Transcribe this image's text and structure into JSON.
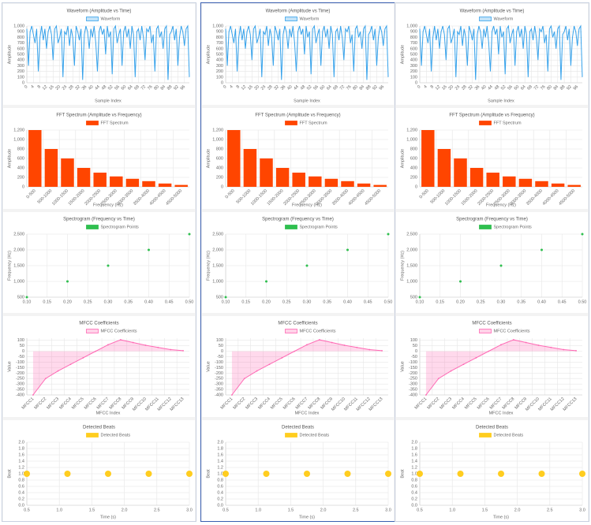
{
  "chart_data": [
    {
      "type": "line",
      "title": "Waveform (Amplitude vs Time)",
      "legend": "Waveform",
      "color": "#36a2eb",
      "xlabel": "Sample Index",
      "ylabel": "Amplitude",
      "x": [
        0,
        1,
        2,
        3,
        4,
        5,
        6,
        7,
        8,
        9,
        10,
        11,
        12,
        13,
        14,
        15,
        16,
        17,
        18,
        19,
        20,
        21,
        22,
        23,
        24,
        25,
        26,
        27,
        28,
        29,
        30,
        31,
        32,
        33,
        34,
        35,
        36,
        37,
        38,
        39,
        40,
        41,
        42,
        43,
        44,
        45,
        46,
        47,
        48,
        49,
        50,
        51,
        52,
        53,
        54,
        55,
        56,
        57,
        58,
        59,
        60,
        61,
        62,
        63,
        64,
        65,
        66,
        67,
        68,
        69,
        70,
        71,
        72,
        73,
        74,
        75,
        76,
        77,
        78,
        79,
        80,
        81,
        82,
        83,
        84,
        85,
        86,
        87,
        88,
        89,
        90,
        91,
        92,
        93,
        94,
        95,
        96,
        97,
        98,
        99
      ],
      "values": [
        950,
        300,
        900,
        1000,
        850,
        700,
        950,
        200,
        800,
        1000,
        750,
        950,
        600,
        900,
        1000,
        850,
        400,
        950,
        1000,
        700,
        800,
        950,
        100,
        900,
        850,
        1000,
        650,
        950,
        800,
        300,
        1000,
        900,
        750,
        950,
        50,
        850,
        1000,
        900,
        600,
        950,
        800,
        1000,
        700,
        200,
        900,
        1000,
        850,
        950,
        500,
        1000,
        800,
        900,
        150,
        950,
        1000,
        700,
        850,
        950,
        300,
        900,
        1000,
        800,
        950,
        600,
        1000,
        850,
        100,
        900,
        950,
        750,
        1000,
        800,
        400,
        950,
        900,
        1000,
        700,
        850,
        200,
        950,
        1000,
        800,
        900,
        600,
        950,
        1000,
        50,
        850,
        900,
        1000,
        750,
        950,
        300,
        800,
        1000,
        900,
        650,
        950,
        1000,
        100
      ],
      "xlim": [
        0,
        99
      ],
      "xticks": [
        0,
        4,
        8,
        12,
        16,
        20,
        24,
        28,
        32,
        36,
        40,
        44,
        48,
        52,
        56,
        60,
        64,
        68,
        72,
        76,
        80,
        84,
        88,
        92,
        96
      ],
      "ylim": [
        0,
        1000
      ],
      "yticks": [
        0,
        100,
        200,
        300,
        400,
        500,
        600,
        700,
        800,
        900,
        {
          "value": 1000,
          "label": "1,000"
        }
      ],
      "grid": true
    },
    {
      "type": "bar",
      "title": "FFT Spectrum (Amplitude vs Frequency)",
      "legend": "FFT Spectrum",
      "color": "#ff4500",
      "xlabel": "Frequency (Hz)",
      "ylabel": "Amplitude",
      "categories": [
        "0-500",
        "500-1000",
        "1000-1500",
        "1500-2000",
        "2000-2500",
        "2500-3000",
        "3000-3500",
        "3500-4000",
        "4000-4500",
        "4500-5000"
      ],
      "values": [
        1200,
        800,
        600,
        400,
        300,
        220,
        170,
        120,
        70,
        40
      ],
      "ylim": [
        0,
        1200
      ],
      "yticks": [
        0,
        200,
        400,
        600,
        800,
        {
          "value": 1000,
          "label": "1,000"
        },
        {
          "value": 1200,
          "label": "1,200"
        }
      ],
      "grid": true
    },
    {
      "type": "scatter",
      "title": "Spectrogram (Frequency vs Time)",
      "legend": "Spectrogram Points",
      "color": "#2fbf4f",
      "ylabel": "Frequency (Hz)",
      "marker_size": 1.5,
      "x": [
        0.1,
        0.2,
        0.3,
        0.4,
        0.5
      ],
      "values": [
        500,
        1000,
        1500,
        2000,
        2500
      ],
      "xlim": [
        0.1,
        0.5
      ],
      "xticks": [
        {
          "value": 0.1,
          "label": "0.10"
        },
        {
          "value": 0.15,
          "label": "0.15"
        },
        {
          "value": 0.2,
          "label": "0.20"
        },
        {
          "value": 0.25,
          "label": "0.25"
        },
        {
          "value": 0.3,
          "label": "0.30"
        },
        {
          "value": 0.35,
          "label": "0.35"
        },
        {
          "value": 0.4,
          "label": "0.40"
        },
        {
          "value": 0.45,
          "label": "0.45"
        },
        {
          "value": 0.5,
          "label": "0.50"
        }
      ],
      "ylim": [
        500,
        2500
      ],
      "yticks": [
        500,
        {
          "value": 1000,
          "label": "1,000"
        },
        {
          "value": 1500,
          "label": "1,500"
        },
        {
          "value": 2000,
          "label": "2,000"
        },
        {
          "value": 2500,
          "label": "2,500"
        }
      ],
      "grid": true
    },
    {
      "type": "line",
      "title": "MFCC Coefficients",
      "legend": "MFCC Coefficients",
      "color": "#ff69b4",
      "fill": true,
      "xlabel": "MFCC Index",
      "ylabel": "Value",
      "categories": [
        "MFCC1",
        "MFCC2",
        "MFCC3",
        "MFCC4",
        "MFCC5",
        "MFCC6",
        "MFCC7",
        "MFCC8",
        "MFCC9",
        "MFCC10",
        "MFCC11",
        "MFCC12",
        "MFCC13"
      ],
      "values": [
        -400,
        -250,
        -180,
        -120,
        -60,
        0,
        60,
        105,
        80,
        55,
        35,
        15,
        5
      ],
      "ylim": [
        -400,
        120
      ],
      "yticks": [
        -400,
        -350,
        -300,
        -250,
        -200,
        -150,
        -100,
        -50,
        0,
        50,
        100
      ],
      "grid": true
    },
    {
      "type": "scatter",
      "title": "Detected Beats",
      "legend": "Detected Beats",
      "color": "#ffcd1f",
      "xlabel": "Time (s)",
      "ylabel": "Beat",
      "marker_size": 4,
      "x": [
        0.5,
        1.125,
        1.75,
        2.375,
        3.0
      ],
      "values": [
        1,
        1,
        1,
        1,
        1
      ],
      "xlim": [
        0.5,
        3.0
      ],
      "xticks": [
        0.5,
        {
          "value": 1,
          "label": "1.0"
        },
        1.5,
        {
          "value": 2,
          "label": "2.0"
        },
        2.5,
        {
          "value": 3,
          "label": "3.0"
        }
      ],
      "ylim": [
        0,
        2
      ],
      "yticks": [
        {
          "value": 0,
          "label": "0.0"
        },
        0.2,
        0.4,
        0.6,
        0.8,
        {
          "value": 1,
          "label": "1.0"
        },
        1.2,
        1.4,
        1.6,
        1.8,
        {
          "value": 2,
          "label": "2.0"
        }
      ],
      "grid": true
    }
  ]
}
